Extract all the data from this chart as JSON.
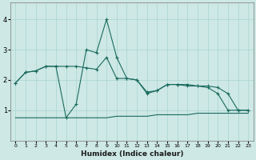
{
  "xlabel": "Humidex (Indice chaleur)",
  "background_color": "#cde8e5",
  "grid_color": "#a8d4d0",
  "line_color": "#1a6b5e",
  "xlim": [
    -0.5,
    23.5
  ],
  "ylim": [
    0,
    4.55
  ],
  "yticks": [
    1,
    2,
    3,
    4
  ],
  "xticks": [
    0,
    1,
    2,
    3,
    4,
    5,
    6,
    7,
    8,
    9,
    10,
    11,
    12,
    13,
    14,
    15,
    16,
    17,
    18,
    19,
    20,
    21,
    22,
    23
  ],
  "line1_x": [
    0,
    1,
    2,
    3,
    4,
    5,
    6,
    7,
    8,
    9,
    10,
    11,
    12,
    13,
    14,
    15,
    16,
    17,
    18,
    19,
    20,
    21,
    22,
    23
  ],
  "line1_y": [
    1.9,
    2.25,
    2.3,
    2.45,
    2.45,
    2.45,
    2.45,
    2.4,
    2.35,
    2.75,
    2.05,
    2.05,
    2.0,
    1.55,
    1.65,
    1.85,
    1.85,
    1.85,
    1.8,
    1.8,
    1.75,
    1.55,
    1.0,
    1.0
  ],
  "line2_x": [
    0,
    1,
    2,
    3,
    4,
    5,
    6,
    7,
    8,
    9,
    10,
    11,
    12,
    13,
    14,
    15,
    16,
    17,
    18,
    19,
    20,
    21,
    22,
    23
  ],
  "line2_y": [
    1.9,
    2.25,
    2.3,
    2.45,
    2.45,
    0.75,
    1.2,
    3.0,
    2.9,
    4.0,
    2.75,
    2.05,
    2.0,
    1.6,
    1.65,
    1.85,
    1.85,
    1.8,
    1.8,
    1.75,
    1.55,
    1.0,
    1.0,
    1.0
  ],
  "line3_x": [
    0,
    1,
    2,
    3,
    4,
    5,
    6,
    7,
    8,
    9,
    10,
    11,
    12,
    13,
    14,
    15,
    16,
    17,
    18,
    19,
    20,
    21,
    22,
    23
  ],
  "line3_y": [
    0.75,
    0.75,
    0.75,
    0.75,
    0.75,
    0.75,
    0.75,
    0.75,
    0.75,
    0.75,
    0.8,
    0.8,
    0.8,
    0.8,
    0.85,
    0.85,
    0.85,
    0.85,
    0.9,
    0.9,
    0.9,
    0.9,
    0.9,
    0.9
  ]
}
